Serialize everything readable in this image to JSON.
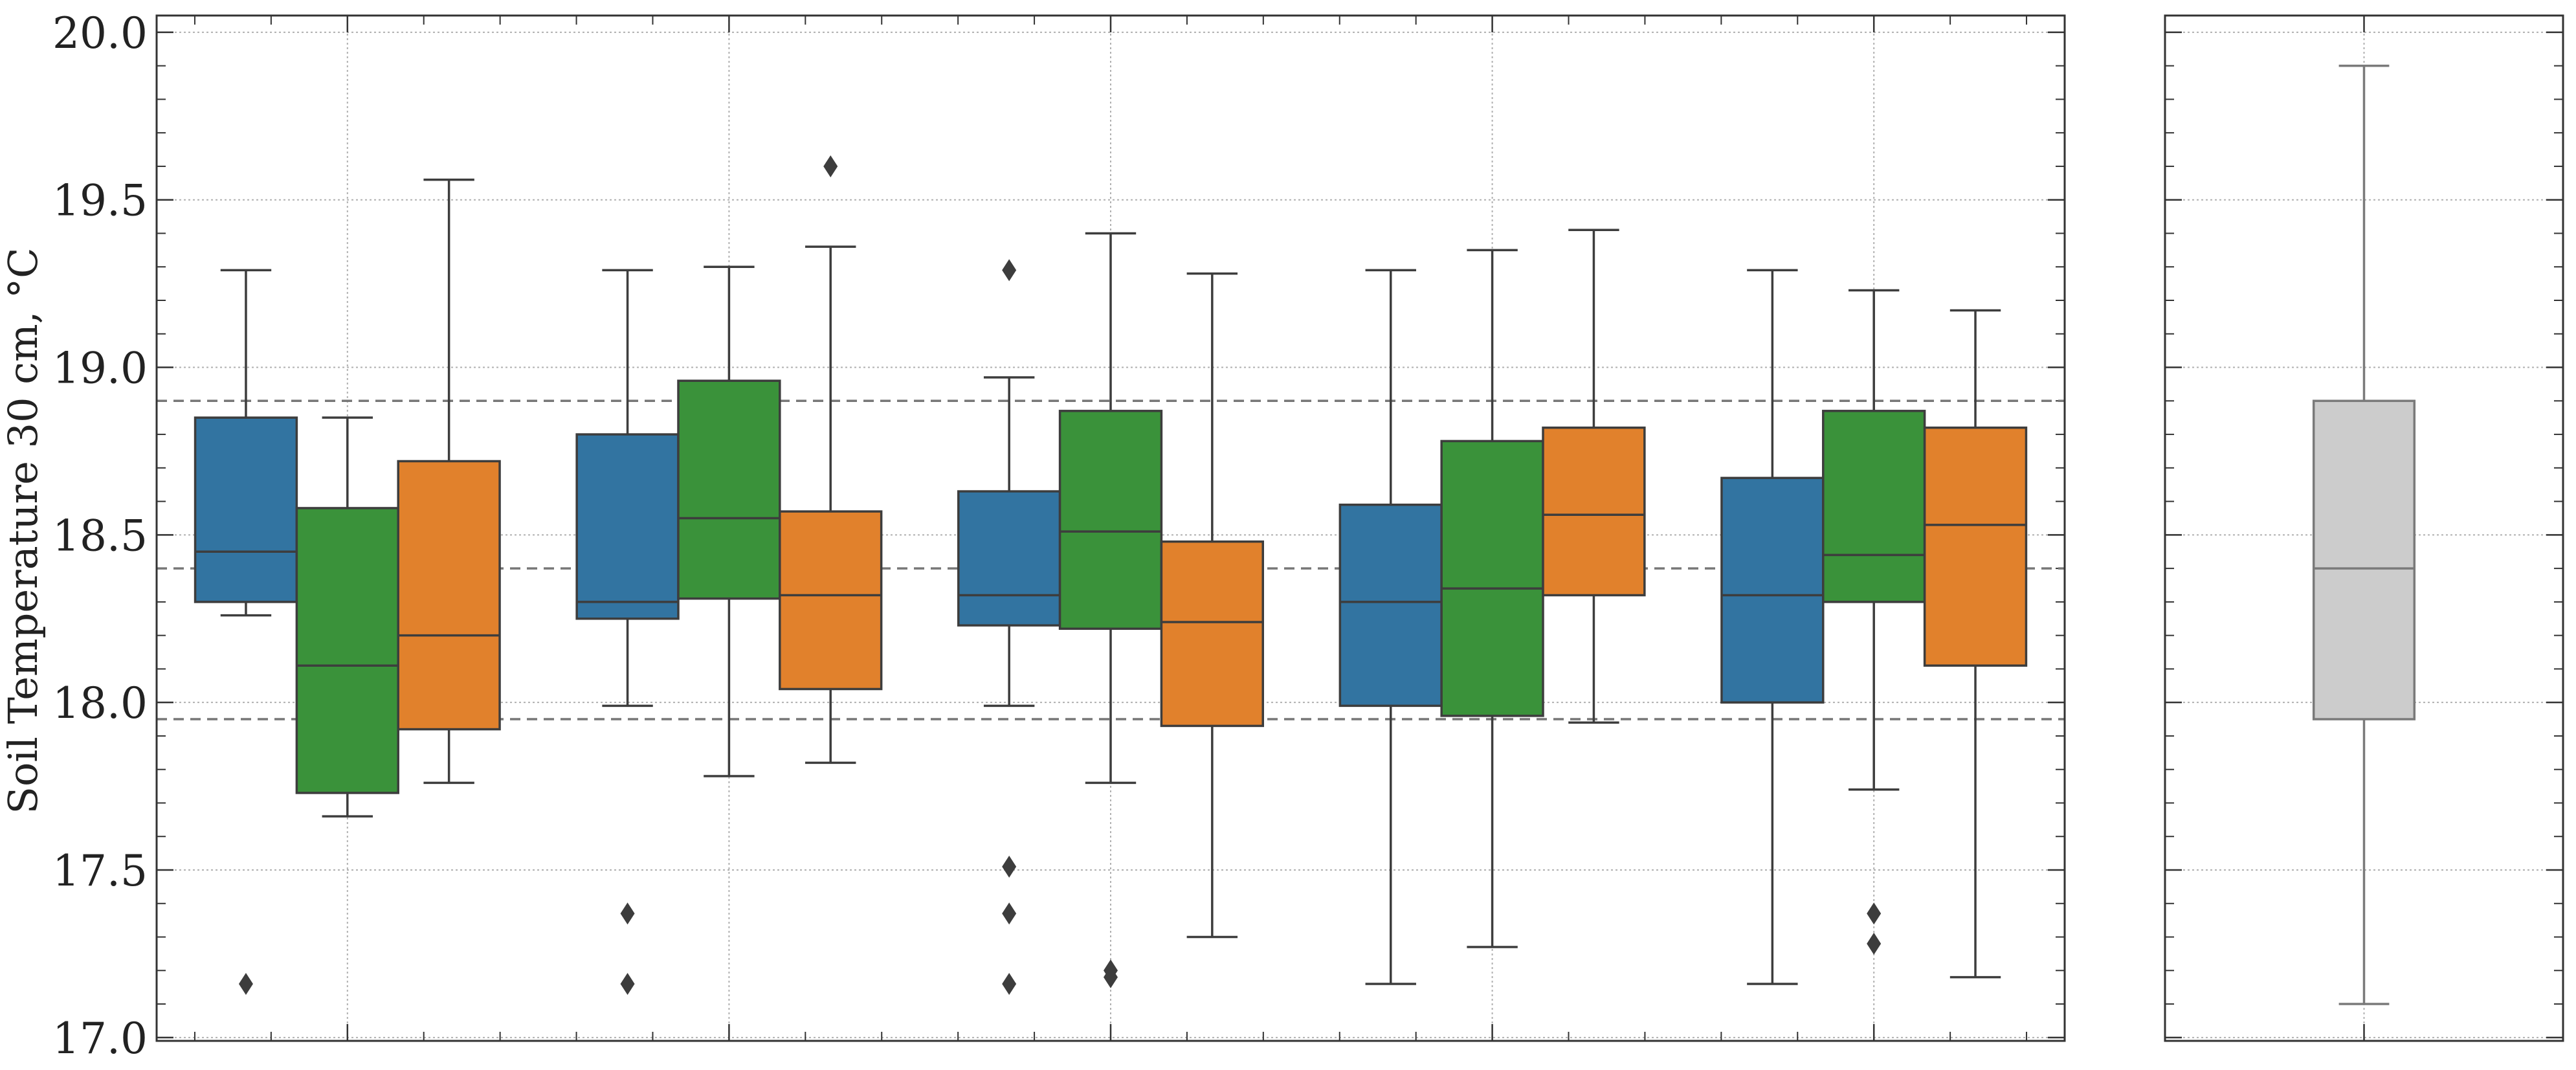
{
  "chart_data": [
    {
      "type": "boxplot",
      "ylabel": "Soil Temperature 30 cm, °C",
      "ylim": [
        16.99,
        20.05
      ],
      "yticks": [
        17.0,
        17.5,
        18.0,
        18.5,
        19.0,
        19.5,
        20.0
      ],
      "ytick_labels": [
        "17.0",
        "17.5",
        "18.0",
        "18.5",
        "19.0",
        "19.5",
        "20.0"
      ],
      "grid": true,
      "reference_lines": [
        17.95,
        18.4,
        18.9
      ],
      "group_count": 5,
      "series_colors": [
        "#3274a1",
        "#3a923a",
        "#e1812c"
      ],
      "groups": [
        {
          "boxes": [
            {
              "whislo": 18.26,
              "q1": 18.3,
              "med": 18.45,
              "q3": 18.85,
              "whishi": 19.29,
              "fliers": [
                17.16
              ]
            },
            {
              "whislo": 17.66,
              "q1": 17.73,
              "med": 18.11,
              "q3": 18.58,
              "whishi": 18.85,
              "fliers": []
            },
            {
              "whislo": 17.76,
              "q1": 17.92,
              "med": 18.2,
              "q3": 18.72,
              "whishi": 19.56,
              "fliers": []
            }
          ]
        },
        {
          "boxes": [
            {
              "whislo": 17.99,
              "q1": 18.25,
              "med": 18.3,
              "q3": 18.8,
              "whishi": 19.29,
              "fliers": [
                17.37,
                17.16
              ]
            },
            {
              "whislo": 17.78,
              "q1": 18.31,
              "med": 18.55,
              "q3": 18.96,
              "whishi": 19.3,
              "fliers": []
            },
            {
              "whislo": 17.82,
              "q1": 18.04,
              "med": 18.32,
              "q3": 18.57,
              "whishi": 19.36,
              "fliers": [
                19.6
              ]
            }
          ]
        },
        {
          "boxes": [
            {
              "whislo": 17.99,
              "q1": 18.23,
              "med": 18.32,
              "q3": 18.63,
              "whishi": 18.97,
              "fliers": [
                19.29,
                17.51,
                17.37,
                17.16
              ]
            },
            {
              "whislo": 17.76,
              "q1": 18.22,
              "med": 18.51,
              "q3": 18.87,
              "whishi": 19.4,
              "fliers": [
                17.2,
                17.18
              ]
            },
            {
              "whislo": 17.3,
              "q1": 17.93,
              "med": 18.24,
              "q3": 18.48,
              "whishi": 19.28,
              "fliers": []
            }
          ]
        },
        {
          "boxes": [
            {
              "whislo": 17.16,
              "q1": 17.99,
              "med": 18.3,
              "q3": 18.59,
              "whishi": 19.29,
              "fliers": []
            },
            {
              "whislo": 17.27,
              "q1": 17.96,
              "med": 18.34,
              "q3": 18.78,
              "whishi": 19.35,
              "fliers": []
            },
            {
              "whislo": 17.94,
              "q1": 18.32,
              "med": 18.56,
              "q3": 18.82,
              "whishi": 19.41,
              "fliers": []
            }
          ]
        },
        {
          "boxes": [
            {
              "whislo": 17.16,
              "q1": 18.0,
              "med": 18.32,
              "q3": 18.67,
              "whishi": 19.29,
              "fliers": []
            },
            {
              "whislo": 17.74,
              "q1": 18.3,
              "med": 18.44,
              "q3": 18.87,
              "whishi": 19.23,
              "fliers": [
                17.37,
                17.28
              ]
            },
            {
              "whislo": 17.18,
              "q1": 18.11,
              "med": 18.53,
              "q3": 18.82,
              "whishi": 19.17,
              "fliers": []
            }
          ]
        }
      ]
    },
    {
      "type": "boxplot",
      "ylim": [
        16.99,
        20.05
      ],
      "yticks": [
        17.0,
        17.5,
        18.0,
        18.5,
        19.0,
        19.5,
        20.0
      ],
      "grid": true,
      "color": "#cccccc",
      "box": {
        "whislo": 17.1,
        "q1": 17.95,
        "med": 18.4,
        "q3": 18.9,
        "whishi": 19.9,
        "fliers": []
      }
    }
  ]
}
